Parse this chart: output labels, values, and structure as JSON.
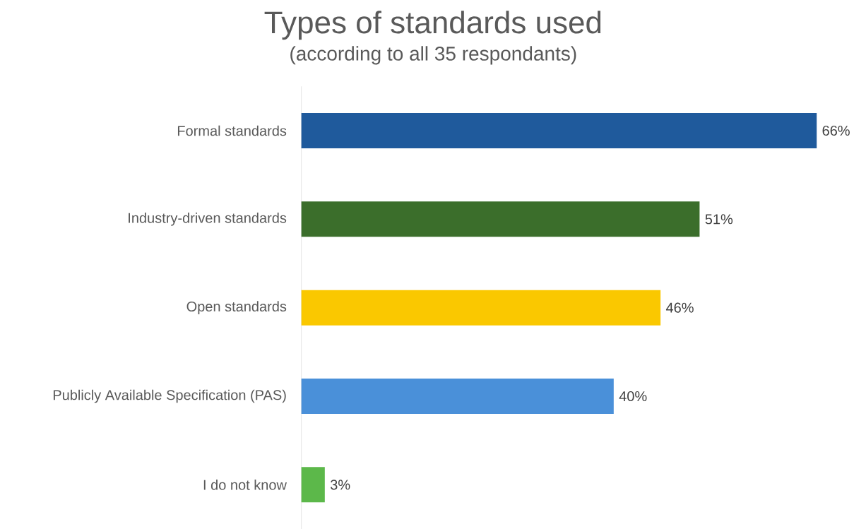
{
  "chart_data": {
    "type": "bar",
    "orientation": "horizontal",
    "title": "Types of standards used",
    "subtitle": "(according to all 35 respondants)",
    "categories": [
      "Formal standards",
      "Industry-driven standards",
      "Open standards",
      "Publicly Available Specification (PAS)",
      "I do not know"
    ],
    "values": [
      66,
      51,
      46,
      40,
      3
    ],
    "value_labels": [
      "66%",
      "51%",
      "46%",
      "40%",
      "3%"
    ],
    "colors": [
      "#1f5a9c",
      "#3b6e2b",
      "#fac800",
      "#4a90d9",
      "#5cb84a"
    ]
  }
}
